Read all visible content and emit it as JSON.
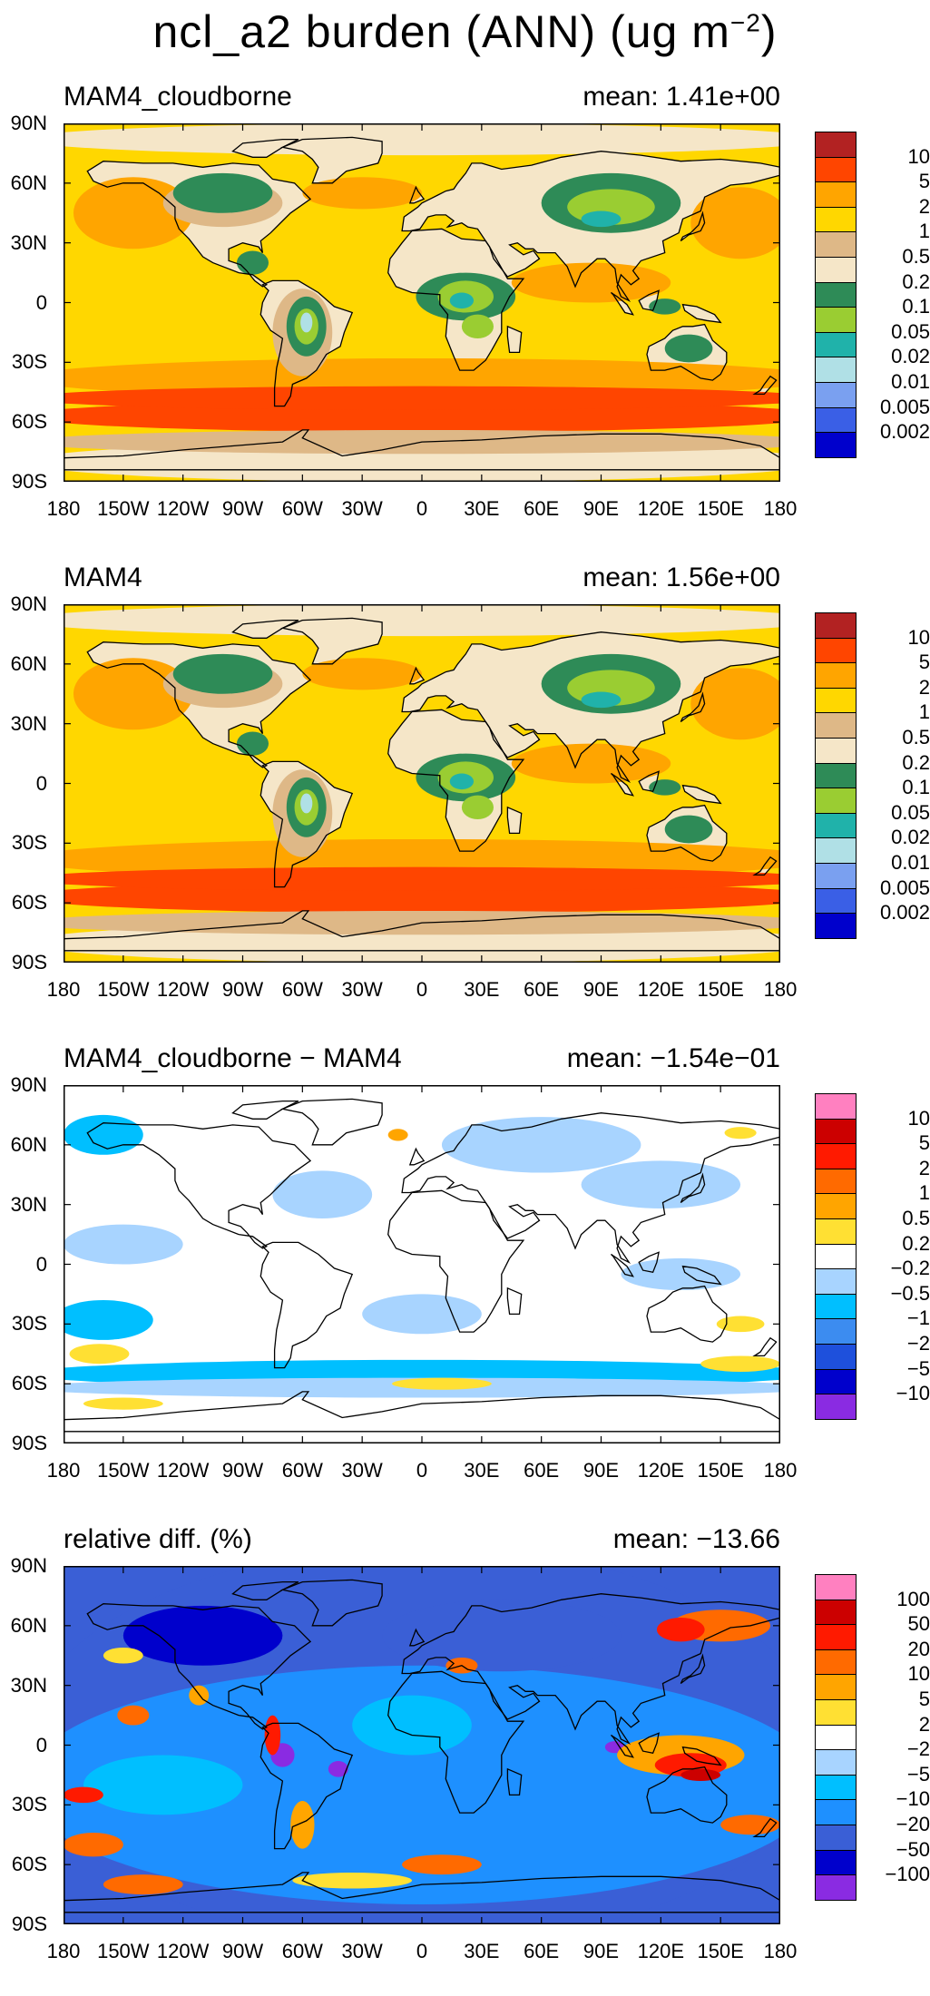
{
  "figure_title": {
    "prefix": "ncl_a2 burden (ANN) (ug m",
    "sup": "−2",
    "suffix": ")"
  },
  "lat_labels": [
    "90N",
    "60N",
    "30N",
    "0",
    "30S",
    "60S",
    "90S"
  ],
  "lon_labels": [
    "180",
    "150W",
    "120W",
    "90W",
    "60W",
    "30W",
    "0",
    "30E",
    "60E",
    "90E",
    "120E",
    "150E",
    "180"
  ],
  "panels": [
    {
      "title": "MAM4_cloudborne",
      "mean": "mean:  1.41e+00",
      "map_style": "burden",
      "colors": [
        "#0000cc",
        "#3a5fe6",
        "#7aa0f0",
        "#b0e0e6",
        "#20b2aa",
        "#9acd32",
        "#2e8b57",
        "#f5e6c8",
        "#deb887",
        "#ffd700",
        "#ffa500",
        "#ff4500",
        "#b22222"
      ],
      "labels": [
        "0.002",
        "0.005",
        "0.01",
        "0.02",
        "0.05",
        "0.1",
        "0.2",
        "0.5",
        "1",
        "2",
        "5",
        "10"
      ]
    },
    {
      "title": "MAM4",
      "mean": "mean:  1.56e+00",
      "map_style": "burden",
      "colors": [
        "#0000cc",
        "#3a5fe6",
        "#7aa0f0",
        "#b0e0e6",
        "#20b2aa",
        "#9acd32",
        "#2e8b57",
        "#f5e6c8",
        "#deb887",
        "#ffd700",
        "#ffa500",
        "#ff4500",
        "#b22222"
      ],
      "labels": [
        "0.002",
        "0.005",
        "0.01",
        "0.02",
        "0.05",
        "0.1",
        "0.2",
        "0.5",
        "1",
        "2",
        "5",
        "10"
      ]
    },
    {
      "title": "MAM4_cloudborne − MAM4",
      "mean": "mean:  −1.54e−01",
      "map_style": "diff",
      "colors": [
        "#8a2be2",
        "#0000cc",
        "#1e50dc",
        "#3c8cf0",
        "#00bfff",
        "#a8d4ff",
        "#ffffff",
        "#ffe033",
        "#ffa500",
        "#ff6a00",
        "#ff1a00",
        "#cc0000",
        "#ff80c0"
      ],
      "labels": [
        "−10",
        "−5",
        "−2",
        "−1",
        "−0.5",
        "−0.2",
        "0.2",
        "0.5",
        "1",
        "2",
        "5",
        "10"
      ]
    },
    {
      "title": "relative diff. (%)",
      "mean": "mean:  −13.66",
      "map_style": "reldiff",
      "colors": [
        "#8a2be2",
        "#0000cc",
        "#3a5fd6",
        "#1e90ff",
        "#00bfff",
        "#a8d4ff",
        "#ffffff",
        "#ffe033",
        "#ffa500",
        "#ff6a00",
        "#ff1a00",
        "#cc0000",
        "#ff80c0"
      ],
      "labels": [
        "−100",
        "−50",
        "−20",
        "−10",
        "−5",
        "−2",
        "2",
        "5",
        "10",
        "20",
        "50",
        "100"
      ]
    }
  ]
}
